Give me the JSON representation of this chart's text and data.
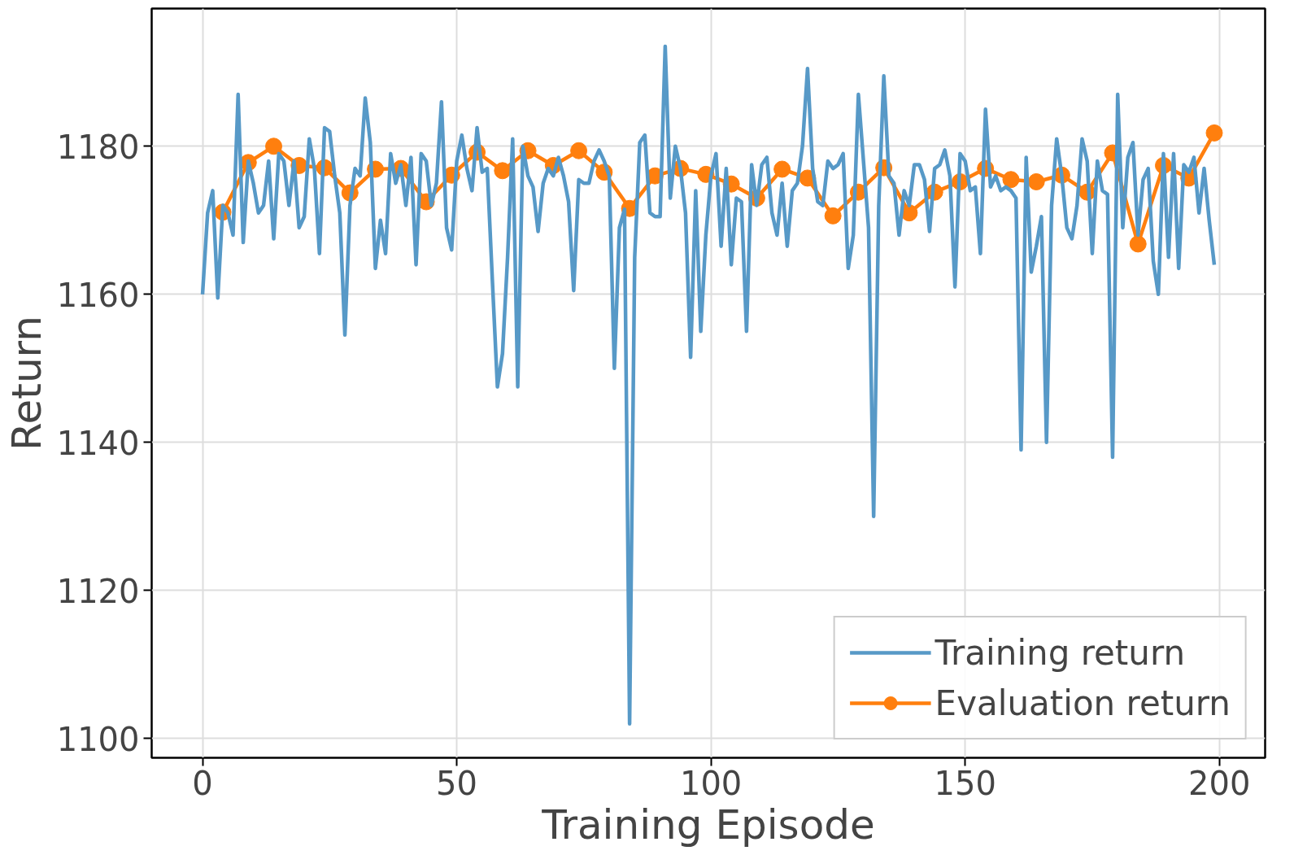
{
  "chart_data": {
    "type": "line",
    "xlabel": "Training Episode",
    "ylabel": "Return",
    "xlim": [
      -10,
      209
    ],
    "ylim": [
      1097.4,
      1198.6
    ],
    "xticks": [
      0,
      50,
      100,
      150,
      200
    ],
    "yticks": [
      1100,
      1120,
      1140,
      1160,
      1180
    ],
    "grid": true,
    "legend": "bottom right",
    "series": [
      {
        "name": "Training return",
        "color": "#5799c7",
        "marker": "none",
        "x": [
          0,
          1,
          2,
          3,
          4,
          5,
          6,
          7,
          8,
          9,
          10,
          11,
          12,
          13,
          14,
          15,
          16,
          17,
          18,
          19,
          20,
          21,
          22,
          23,
          24,
          25,
          26,
          27,
          28,
          29,
          30,
          31,
          32,
          33,
          34,
          35,
          36,
          37,
          38,
          39,
          40,
          41,
          42,
          43,
          44,
          45,
          46,
          47,
          48,
          49,
          50,
          51,
          52,
          53,
          54,
          55,
          56,
          57,
          58,
          59,
          60,
          61,
          62,
          63,
          64,
          65,
          66,
          67,
          68,
          69,
          70,
          71,
          72,
          73,
          74,
          75,
          76,
          77,
          78,
          79,
          80,
          81,
          82,
          83,
          84,
          85,
          86,
          87,
          88,
          89,
          90,
          91,
          92,
          93,
          94,
          95,
          96,
          97,
          98,
          99,
          100,
          101,
          102,
          103,
          104,
          105,
          106,
          107,
          108,
          109,
          110,
          111,
          112,
          113,
          114,
          115,
          116,
          117,
          118,
          119,
          120,
          121,
          122,
          123,
          124,
          125,
          126,
          127,
          128,
          129,
          130,
          131,
          132,
          133,
          134,
          135,
          136,
          137,
          138,
          139,
          140,
          141,
          142,
          143,
          144,
          145,
          146,
          147,
          148,
          149,
          150,
          151,
          152,
          153,
          154,
          155,
          156,
          157,
          158,
          159,
          160,
          161,
          162,
          163,
          164,
          165,
          166,
          167,
          168,
          169,
          170,
          171,
          172,
          173,
          174,
          175,
          176,
          177,
          178,
          179,
          180,
          181,
          182,
          183,
          184,
          185,
          186,
          187,
          188,
          189,
          190,
          191,
          192,
          193,
          194,
          195,
          196,
          197,
          198,
          199
        ],
        "values": [
          1160,
          1171,
          1174,
          1159.5,
          1172,
          1171,
          1168,
          1187,
          1167,
          1178,
          1175,
          1171,
          1172,
          1178,
          1167.5,
          1179,
          1178,
          1172,
          1178,
          1169,
          1170.5,
          1181,
          1177,
          1165.5,
          1182.5,
          1182,
          1176,
          1171,
          1154.5,
          1172,
          1177,
          1176,
          1186.5,
          1180.5,
          1163.5,
          1170,
          1165.5,
          1179,
          1175,
          1177.5,
          1172,
          1178.5,
          1164,
          1179,
          1178,
          1172,
          1175,
          1186,
          1169,
          1166,
          1178,
          1181.5,
          1177,
          1174,
          1182.5,
          1176.5,
          1177,
          1162,
          1147.5,
          1152,
          1165,
          1181,
          1147.5,
          1180,
          1176,
          1174.5,
          1168.5,
          1175,
          1177,
          1176,
          1178.5,
          1176,
          1172.5,
          1160.5,
          1175.5,
          1175,
          1175,
          1178,
          1179.5,
          1178,
          1176,
          1150,
          1169,
          1171.5,
          1102,
          1165,
          1180.5,
          1181.5,
          1171,
          1170.5,
          1170.5,
          1193.5,
          1173,
          1180,
          1177,
          1171,
          1151.5,
          1174,
          1155,
          1168,
          1176,
          1179,
          1166.5,
          1177,
          1164,
          1173,
          1172.5,
          1155,
          1177.5,
          1172,
          1177.5,
          1178.5,
          1171,
          1168,
          1175,
          1166.5,
          1174,
          1175,
          1180,
          1190.5,
          1177,
          1172.5,
          1172,
          1178,
          1177,
          1177.5,
          1179,
          1163.5,
          1168,
          1187,
          1178,
          1169,
          1130,
          1172,
          1189.5,
          1176,
          1175,
          1168,
          1174,
          1172,
          1177.5,
          1177.5,
          1175.5,
          1168.5,
          1177,
          1177.5,
          1179.5,
          1176,
          1161,
          1179,
          1178,
          1174,
          1174.5,
          1165.5,
          1185,
          1174.5,
          1176,
          1174,
          1174.5,
          1174,
          1173,
          1139,
          1178.5,
          1163,
          1166.5,
          1170.5,
          1140,
          1172,
          1181,
          1176,
          1169,
          1167.5,
          1172,
          1181,
          1178,
          1165.5,
          1178,
          1174,
          1173.5,
          1138,
          1187,
          1169,
          1178.5,
          1180.5,
          1168,
          1175.5,
          1177,
          1164.5,
          1160,
          1179,
          1165,
          1179,
          1163.5,
          1177.5,
          1176.5,
          1178.5,
          1171,
          1177,
          1170,
          1164
        ]
      },
      {
        "name": "Evaluation return",
        "color": "#ff7f0e",
        "marker": "circle",
        "x": [
          4,
          9,
          14,
          19,
          24,
          29,
          34,
          39,
          44,
          49,
          54,
          59,
          64,
          69,
          74,
          79,
          84,
          89,
          94,
          99,
          104,
          109,
          114,
          119,
          124,
          129,
          134,
          139,
          144,
          149,
          154,
          159,
          164,
          169,
          174,
          179,
          184,
          189,
          194,
          199
        ],
        "values": [
          1171.1,
          1177.8,
          1180,
          1177.4,
          1177.1,
          1173.7,
          1176.9,
          1177,
          1172.5,
          1176.1,
          1179.2,
          1176.7,
          1179.4,
          1177.4,
          1179.4,
          1176.5,
          1171.6,
          1176,
          1177,
          1176.2,
          1174.9,
          1173,
          1176.9,
          1175.7,
          1170.6,
          1173.8,
          1177.1,
          1171,
          1173.8,
          1175.2,
          1177,
          1175.5,
          1175.2,
          1176.1,
          1173.8,
          1179.1,
          1166.8,
          1177.4,
          1175.7,
          1181.8
        ]
      }
    ]
  }
}
